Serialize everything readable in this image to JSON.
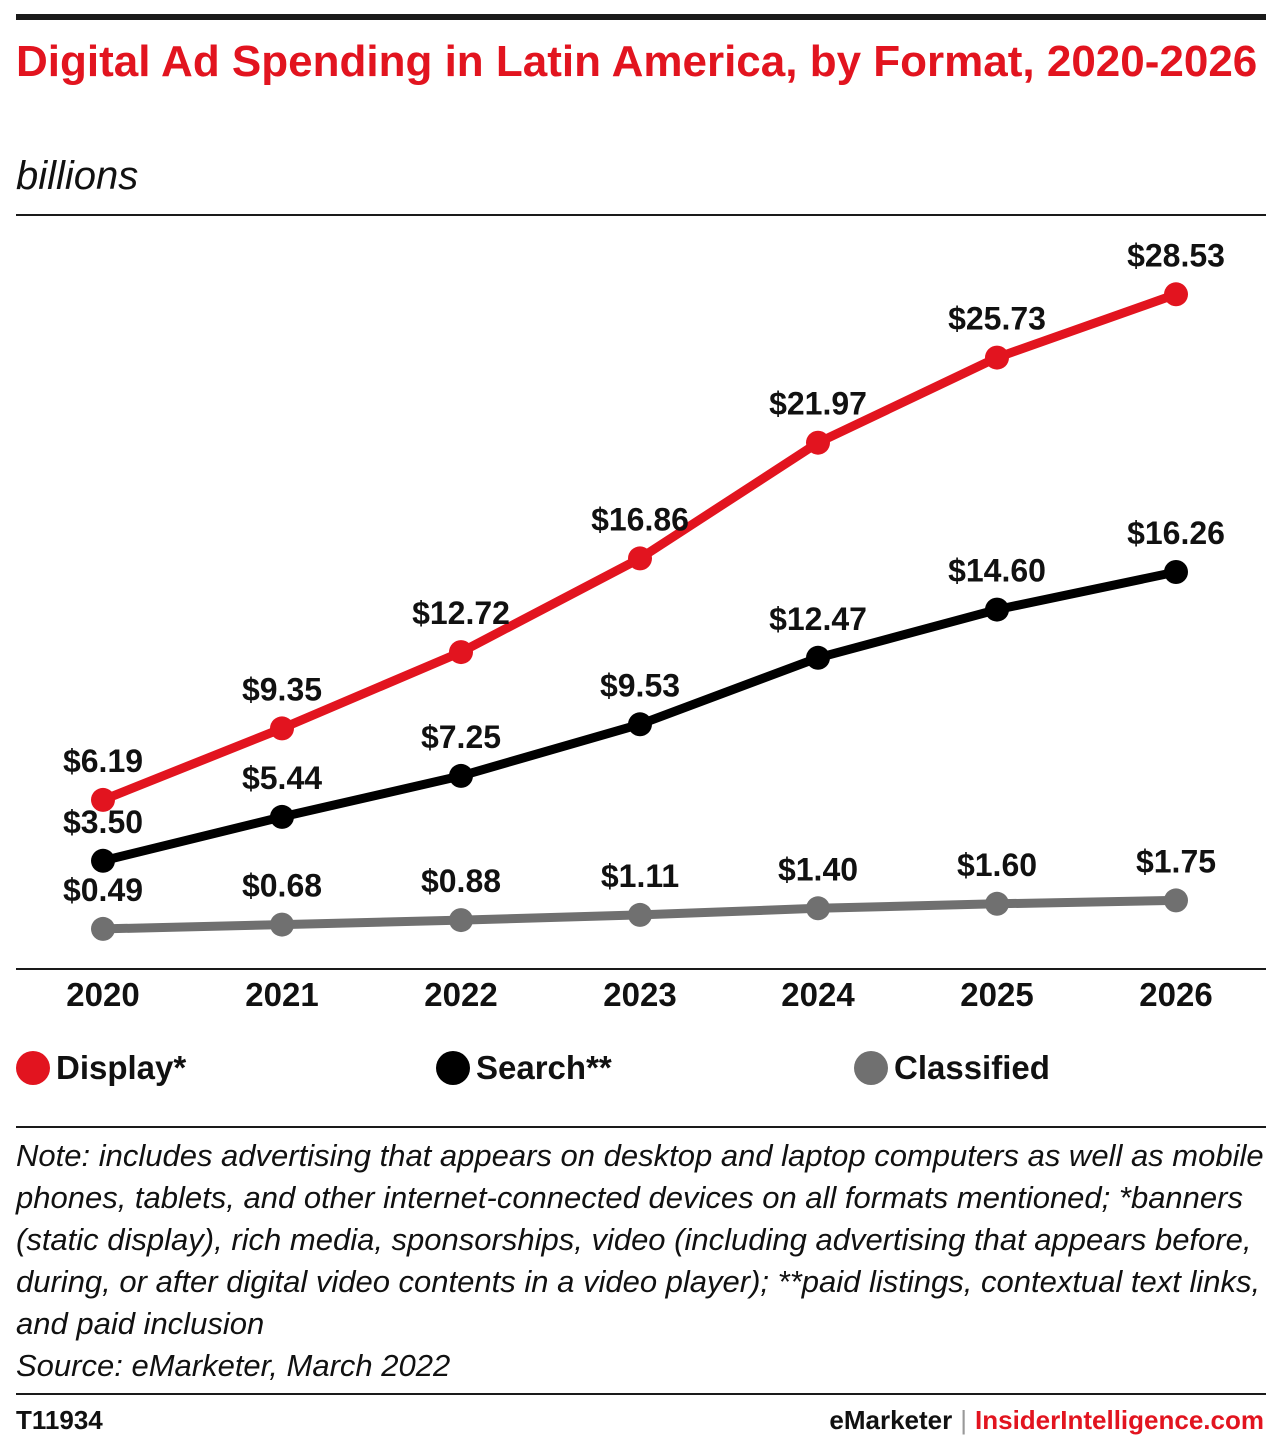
{
  "header": {
    "title": "Digital Ad Spending in Latin America, by Format, 2020-2026",
    "subtitle": "billions"
  },
  "legend": {
    "display": "Display*",
    "search": "Search**",
    "classified": "Classified"
  },
  "colors": {
    "display": "#e2141f",
    "search": "#000000",
    "classified": "#707070"
  },
  "chart_data": {
    "type": "line",
    "title": "Digital Ad Spending in Latin America, by Format, 2020-2026",
    "subtitle": "billions",
    "x": [
      "2020",
      "2021",
      "2022",
      "2023",
      "2024",
      "2025",
      "2026"
    ],
    "ylim": [
      0,
      30
    ],
    "grid": false,
    "legend_position": "bottom",
    "series": [
      {
        "name": "Display*",
        "color": "#e2141f",
        "values": [
          6.19,
          9.35,
          12.72,
          16.86,
          21.97,
          25.73,
          28.53
        ],
        "labels": [
          "$6.19",
          "$9.35",
          "$12.72",
          "$16.86",
          "$21.97",
          "$25.73",
          "$28.53"
        ]
      },
      {
        "name": "Search**",
        "color": "#000000",
        "values": [
          3.5,
          5.44,
          7.25,
          9.53,
          12.47,
          14.6,
          16.26
        ],
        "labels": [
          "$3.50",
          "$5.44",
          "$7.25",
          "$9.53",
          "$12.47",
          "$14.60",
          "$16.26"
        ]
      },
      {
        "name": "Classified",
        "color": "#707070",
        "values": [
          0.49,
          0.68,
          0.88,
          1.11,
          1.4,
          1.6,
          1.75
        ],
        "labels": [
          "$0.49",
          "$0.68",
          "$0.88",
          "$1.11",
          "$1.40",
          "$1.60",
          "$1.75"
        ]
      }
    ]
  },
  "footer": {
    "note": "Note: includes advertising that appears on desktop and laptop computers as well as mobile phones, tablets, and other internet-connected devices on all formats mentioned; *banners (static display), rich media, sponsorships, video (including advertising that appears before, during, or after digital video contents in a video player); **paid listings, contextual text links, and paid inclusion",
    "source": "Source: eMarketer, March 2022",
    "code": "T11934",
    "brand1": "eMarketer",
    "separator": "|",
    "brand2": "InsiderIntelligence.com"
  }
}
